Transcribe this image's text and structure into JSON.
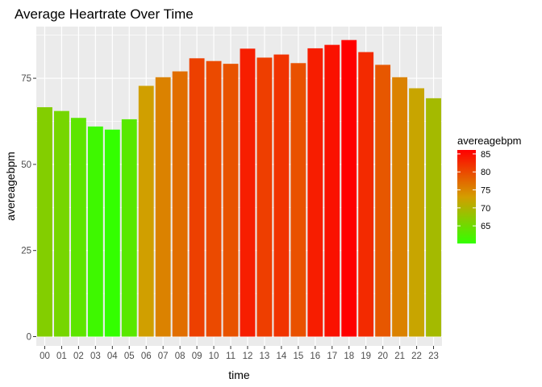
{
  "chart_data": {
    "type": "bar",
    "title": "Average Heartrate Over Time",
    "xlabel": "time",
    "ylabel": "avereagebpm",
    "categories": [
      "00",
      "01",
      "02",
      "03",
      "04",
      "05",
      "06",
      "07",
      "08",
      "09",
      "10",
      "11",
      "12",
      "13",
      "14",
      "15",
      "16",
      "17",
      "18",
      "19",
      "20",
      "21",
      "22",
      "23"
    ],
    "values": [
      66.6,
      65.5,
      63.5,
      61.0,
      60.1,
      63.1,
      72.8,
      75.3,
      77.0,
      80.8,
      80.0,
      79.2,
      83.6,
      81.0,
      81.9,
      79.4,
      83.7,
      84.7,
      86.1,
      82.6,
      78.9,
      75.3,
      72.1,
      69.2
    ],
    "ylim": [
      0,
      90
    ],
    "y_ticks": [
      0,
      25,
      50,
      75
    ],
    "grid": true,
    "legend": {
      "title": "avereagebpm",
      "position": "right",
      "ticks": [
        65,
        70,
        75,
        80,
        85
      ],
      "range": [
        60.1,
        86.1
      ]
    },
    "colors": {
      "low": "#33ff00",
      "mid": "#d49d00",
      "high": "#ff0000",
      "panel_background": "#ebebeb",
      "grid": "#ffffff"
    }
  }
}
